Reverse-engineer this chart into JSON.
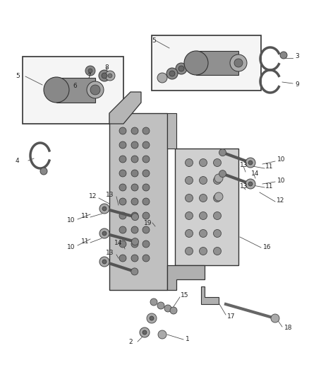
{
  "background_color": "#ffffff",
  "figsize": [
    4.38,
    5.33
  ],
  "dpi": 100,
  "part_gray": "#888888",
  "part_dark": "#444444",
  "part_light": "#bbbbbb",
  "part_med": "#999999",
  "box_bg": "#f5f5f5",
  "line_col": "#333333"
}
